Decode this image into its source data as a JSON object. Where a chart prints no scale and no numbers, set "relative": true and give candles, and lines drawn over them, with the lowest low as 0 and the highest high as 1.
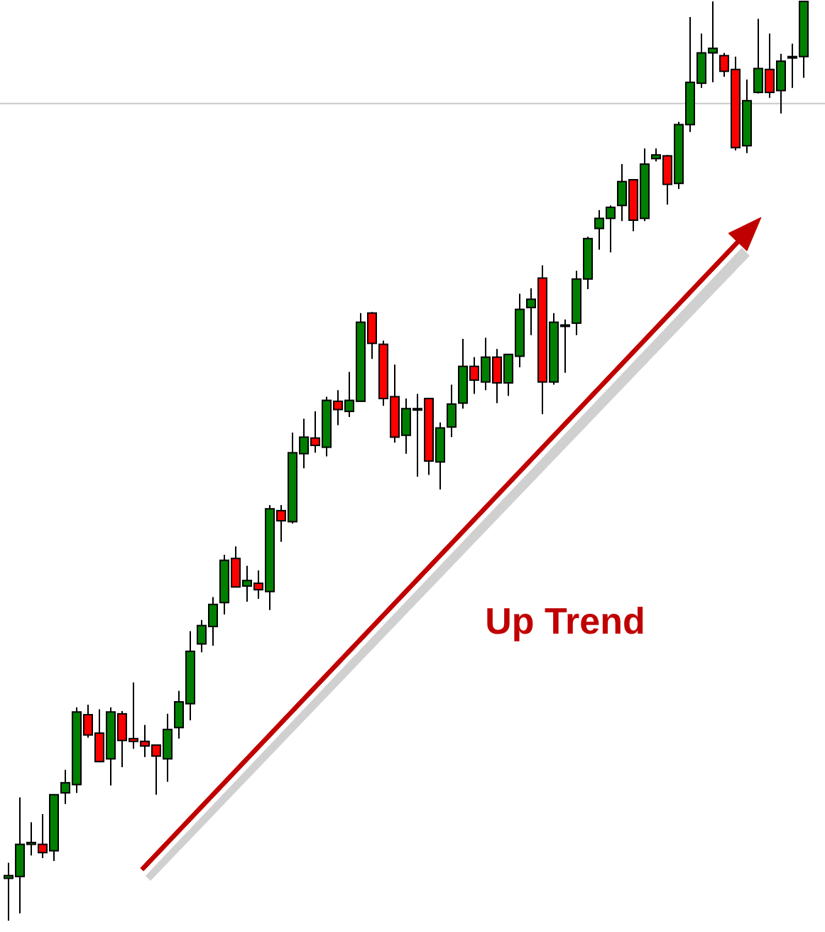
{
  "chart_data": {
    "type": "candlestick",
    "relative": true,
    "categories": [
      null,
      null,
      null,
      null,
      null,
      null,
      null,
      null,
      null,
      null,
      null,
      null,
      null,
      null,
      null,
      null,
      null,
      null,
      null,
      null,
      null,
      null,
      null,
      null,
      null,
      null,
      null,
      null,
      null,
      null,
      null,
      null,
      null,
      null,
      null,
      null,
      null,
      null,
      null,
      null,
      null,
      null,
      null,
      null,
      null,
      null,
      null,
      null,
      null,
      null,
      null,
      null,
      null,
      null,
      null,
      null,
      null,
      null,
      null,
      null,
      null,
      null,
      null,
      null,
      null,
      null,
      null,
      null,
      null,
      null,
      null
    ],
    "ohlc": [
      [
        0.046,
        0.063,
        0,
        0.049
      ],
      [
        0.048,
        0.134,
        0.008,
        0.083
      ],
      [
        0.083,
        0.107,
        0.071,
        0.085
      ],
      [
        0.083,
        0.116,
        0.068,
        0.074
      ],
      [
        0.076,
        0.137,
        0.065,
        0.137
      ],
      [
        0.139,
        0.164,
        0.127,
        0.15
      ],
      [
        0.148,
        0.232,
        0.139,
        0.227
      ],
      [
        0.224,
        0.235,
        0.199,
        0.202
      ],
      [
        0.204,
        0.23,
        0.173,
        0.173
      ],
      [
        0.176,
        0.232,
        0.147,
        0.227
      ],
      [
        0.225,
        0.228,
        0.167,
        0.196
      ],
      [
        0.198,
        0.259,
        0.187,
        0.195
      ],
      [
        0.195,
        0.213,
        0.178,
        0.19
      ],
      [
        0.191,
        0.191,
        0.137,
        0.179
      ],
      [
        0.176,
        0.225,
        0.151,
        0.208
      ],
      [
        0.21,
        0.25,
        0.198,
        0.238
      ],
      [
        0.236,
        0.315,
        0.218,
        0.293
      ],
      [
        0.301,
        0.327,
        0.292,
        0.321
      ],
      [
        0.32,
        0.352,
        0.299,
        0.344
      ],
      [
        0.346,
        0.398,
        0.333,
        0.392
      ],
      [
        0.394,
        0.407,
        0.363,
        0.363
      ],
      [
        0.364,
        0.386,
        0.347,
        0.37
      ],
      [
        0.367,
        0.381,
        0.35,
        0.36
      ],
      [
        0.358,
        0.452,
        0.338,
        0.448
      ],
      [
        0.446,
        0.452,
        0.412,
        0.435
      ],
      [
        0.434,
        0.531,
        0.432,
        0.509
      ],
      [
        0.508,
        0.546,
        0.492,
        0.526
      ],
      [
        0.525,
        0.554,
        0.509,
        0.517
      ],
      [
        0.515,
        0.57,
        0.505,
        0.566
      ],
      [
        0.565,
        0.577,
        0.539,
        0.556
      ],
      [
        0.554,
        0.597,
        0.548,
        0.566
      ],
      [
        0.565,
        0.661,
        0.565,
        0.651
      ],
      [
        0.661,
        0.662,
        0.611,
        0.628
      ],
      [
        0.627,
        0.631,
        0.56,
        0.568
      ],
      [
        0.57,
        0.605,
        0.52,
        0.526
      ],
      [
        0.528,
        0.568,
        0.508,
        0.557
      ],
      [
        0.557,
        0.573,
        0.483,
        0.557
      ],
      [
        0.568,
        0.568,
        0.485,
        0.5
      ],
      [
        0.499,
        0.542,
        0.469,
        0.536
      ],
      [
        0.537,
        0.583,
        0.526,
        0.562
      ],
      [
        0.563,
        0.633,
        0.557,
        0.603
      ],
      [
        0.603,
        0.613,
        0.573,
        0.588
      ],
      [
        0.586,
        0.634,
        0.577,
        0.613
      ],
      [
        0.613,
        0.622,
        0.563,
        0.585
      ],
      [
        0.585,
        0.616,
        0.571,
        0.616
      ],
      [
        0.614,
        0.682,
        0.602,
        0.665
      ],
      [
        0.667,
        0.688,
        0.637,
        0.676
      ],
      [
        0.699,
        0.713,
        0.551,
        0.586
      ],
      [
        0.586,
        0.661,
        0.583,
        0.651
      ],
      [
        0.648,
        0.654,
        0.596,
        0.648
      ],
      [
        0.65,
        0.707,
        0.637,
        0.698
      ],
      [
        0.698,
        0.744,
        0.687,
        0.742
      ],
      [
        0.753,
        0.773,
        0.73,
        0.764
      ],
      [
        0.764,
        0.778,
        0.727,
        0.776
      ],
      [
        0.778,
        0.823,
        0.761,
        0.804
      ],
      [
        0.806,
        0.806,
        0.75,
        0.762
      ],
      [
        0.764,
        0.84,
        0.761,
        0.823
      ],
      [
        0.829,
        0.84,
        0.826,
        0.833
      ],
      [
        0.832,
        0.833,
        0.779,
        0.801
      ],
      [
        0.802,
        0.869,
        0.796,
        0.866
      ],
      [
        0.866,
        0.983,
        0.858,
        0.912
      ],
      [
        0.911,
        0.965,
        0.906,
        0.944
      ],
      [
        0.944,
        1,
        0.912,
        0.949
      ],
      [
        0.941,
        0.944,
        0.918,
        0.924
      ],
      [
        0.926,
        0.94,
        0.838,
        0.841
      ],
      [
        0.843,
        0.915,
        0.835,
        0.892
      ],
      [
        0.901,
        0.981,
        0.9,
        0.927
      ],
      [
        0.926,
        0.965,
        0.895,
        0.901
      ],
      [
        0.903,
        0.943,
        0.878,
        0.935
      ],
      [
        0.94,
        0.954,
        0.906,
        0.94
      ],
      [
        0.94,
        1,
        0.917,
        1
      ]
    ],
    "ref_lines": [
      {
        "axis": "y",
        "value": 0.889,
        "color": "#c8c8c8"
      }
    ],
    "annotations": [
      "Up Trend"
    ]
  }
}
